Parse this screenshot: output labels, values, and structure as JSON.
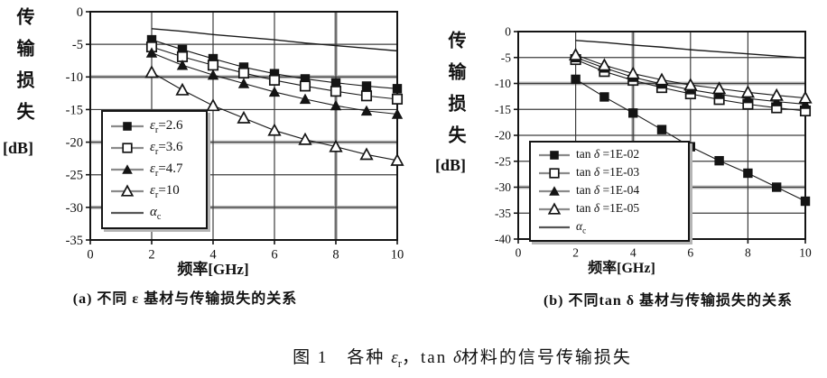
{
  "colors": {
    "paper": "#ffffff",
    "ink": "#141414",
    "grid": "#3c3c3c",
    "scan_smudge": "#bdbdbd"
  },
  "figure_caption": {
    "p1": "图 1　各种 ",
    "sym1": "ε",
    "sub1": "r",
    "p2": "，tan ",
    "sym2": "δ",
    "p3": "材料的信号传输损失"
  },
  "chart_data": [
    {
      "type": "line",
      "panel": "a",
      "caption": "(a) 不同 ε 基材与传输损失的关系",
      "ylabel": "传输损失",
      "ylabel_unit": "[dB]",
      "xlabel": "频率[GHz]",
      "grid": true,
      "legend_position": "inside-bottom-left",
      "x": [
        2,
        3,
        4,
        5,
        6,
        7,
        8,
        9,
        10
      ],
      "xlim": [
        0,
        10
      ],
      "ylim": [
        -35,
        0
      ],
      "xticks": [
        0,
        2,
        4,
        6,
        8,
        10
      ],
      "yticks": [
        0,
        -5,
        -10,
        -15,
        -20,
        -25,
        -30,
        -35
      ],
      "series": [
        {
          "label": {
            "pre": "",
            "sym": "ε",
            "sub": "r",
            "post": "=2.6"
          },
          "marker": "filled-square",
          "values": [
            -4.3,
            -5.8,
            -7.2,
            -8.5,
            -9.5,
            -10.3,
            -10.9,
            -11.4,
            -11.8
          ]
        },
        {
          "label": {
            "pre": "",
            "sym": "ε",
            "sub": "r",
            "post": "=3.6"
          },
          "marker": "open-square",
          "values": [
            -5.4,
            -6.9,
            -8.2,
            -9.4,
            -10.5,
            -11.4,
            -12.2,
            -12.9,
            -13.4
          ]
        },
        {
          "label": {
            "pre": "",
            "sym": "ε",
            "sub": "r",
            "post": "=4.7"
          },
          "marker": "filled-triangle",
          "values": [
            -6.3,
            -8.2,
            -9.7,
            -11.0,
            -12.3,
            -13.4,
            -14.4,
            -15.2,
            -15.7
          ]
        },
        {
          "label": {
            "pre": "",
            "sym": "ε",
            "sub": "r",
            "post": "=10"
          },
          "marker": "open-triangle",
          "values": [
            -9.3,
            -12.0,
            -14.4,
            -16.3,
            -18.2,
            -19.6,
            -20.7,
            -21.9,
            -22.8
          ]
        },
        {
          "label": {
            "pre": "",
            "sym": "α",
            "sub": "c",
            "post": ""
          },
          "marker": "none",
          "values": [
            -2.6,
            -3.0,
            -3.5,
            -3.9,
            -4.3,
            -4.8,
            -5.2,
            -5.6,
            -6.0
          ]
        }
      ]
    },
    {
      "type": "line",
      "panel": "b",
      "caption": "(b) 不同tan δ 基材与传输损失的关系",
      "ylabel": "传输损失",
      "ylabel_unit": "[dB]",
      "xlabel": "频率[GHz]",
      "grid": true,
      "legend_position": "inside-bottom-left",
      "x": [
        2,
        3,
        4,
        5,
        6,
        7,
        8,
        9,
        10
      ],
      "xlim": [
        0,
        10
      ],
      "ylim": [
        -40,
        0
      ],
      "xticks": [
        0,
        2,
        4,
        6,
        8,
        10
      ],
      "yticks": [
        0,
        -5,
        -10,
        -15,
        -20,
        -25,
        -30,
        -35,
        -40
      ],
      "series": [
        {
          "label": {
            "pre": "tan ",
            "sym": "δ",
            "sub": "",
            "post": " =1E-02"
          },
          "marker": "filled-square",
          "values": [
            -9.2,
            -12.6,
            -15.7,
            -18.9,
            -22.2,
            -24.9,
            -27.3,
            -30.0,
            -32.7
          ]
        },
        {
          "label": {
            "pre": "tan ",
            "sym": "δ",
            "sub": "",
            "post": " =1E-03"
          },
          "marker": "open-square",
          "values": [
            -5.4,
            -7.7,
            -9.4,
            -10.8,
            -12.0,
            -13.1,
            -14.0,
            -14.7,
            -15.3
          ]
        },
        {
          "label": {
            "pre": "tan ",
            "sym": "δ",
            "sub": "",
            "post": " =1E-04"
          },
          "marker": "filled-triangle",
          "values": [
            -5.0,
            -7.0,
            -8.8,
            -10.1,
            -11.2,
            -12.1,
            -12.9,
            -13.5,
            -14.0
          ]
        },
        {
          "label": {
            "pre": "tan ",
            "sym": "δ",
            "sub": "",
            "post": " =1E-05"
          },
          "marker": "open-triangle",
          "values": [
            -4.5,
            -6.5,
            -8.1,
            -9.3,
            -10.3,
            -11.0,
            -11.7,
            -12.3,
            -12.8
          ]
        },
        {
          "label": {
            "pre": "",
            "sym": "α",
            "sub": "c",
            "post": ""
          },
          "marker": "none",
          "values": [
            -1.7,
            -2.1,
            -2.6,
            -3.0,
            -3.5,
            -3.9,
            -4.3,
            -4.7,
            -5.1
          ]
        }
      ]
    }
  ]
}
